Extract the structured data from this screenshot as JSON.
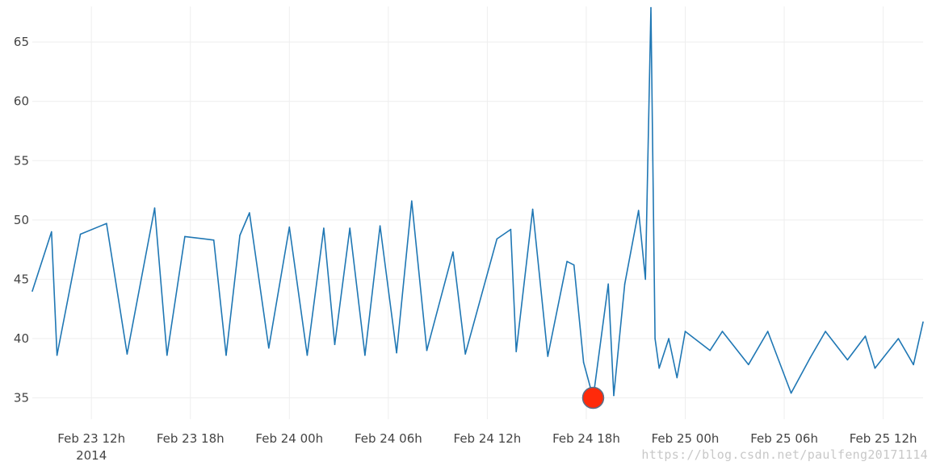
{
  "chart_data": {
    "type": "line",
    "title": "",
    "xlabel": "",
    "ylabel": "",
    "x_start": "2014-02-23 08:25",
    "x_end": "2014-02-25 14:25",
    "xlim": [
      "2014-02-23 08:25",
      "2014-02-25 14:25"
    ],
    "ylim": [
      33.2,
      68
    ],
    "grid": true,
    "legend": "none",
    "line_color": "#1f77b4",
    "marker_color": "#ff2a0a",
    "marker_edge_color": "#5a6e88",
    "y_ticks": [
      35,
      40,
      45,
      50,
      55,
      60,
      65
    ],
    "x_ticks": [
      {
        "t": "2014-02-23 12:00",
        "label": "Feb 23 12h",
        "sub": "2014"
      },
      {
        "t": "2014-02-23 18:00",
        "label": "Feb 23 18h",
        "sub": ""
      },
      {
        "t": "2014-02-24 00:00",
        "label": "Feb 24 00h",
        "sub": ""
      },
      {
        "t": "2014-02-24 06:00",
        "label": "Feb 24 06h",
        "sub": ""
      },
      {
        "t": "2014-02-24 12:00",
        "label": "Feb 24 12h",
        "sub": ""
      },
      {
        "t": "2014-02-24 18:00",
        "label": "Feb 24 18h",
        "sub": ""
      },
      {
        "t": "2014-02-25 00:00",
        "label": "Feb 25 00h",
        "sub": ""
      },
      {
        "t": "2014-02-25 06:00",
        "label": "Feb 25 06h",
        "sub": ""
      },
      {
        "t": "2014-02-25 12:00",
        "label": "Feb 25 12h",
        "sub": ""
      }
    ],
    "anomaly": {
      "x": "2014-02-24 18:25",
      "y": 35.0
    },
    "series": [
      {
        "x": [
          "2014-02-23 08:25",
          "2014-02-23 09:35",
          "2014-02-23 09:55",
          "2014-02-23 11:20",
          "2014-02-23 12:55",
          "2014-02-23 14:10",
          "2014-02-23 15:50",
          "2014-02-23 16:35",
          "2014-02-23 17:40",
          "2014-02-23 19:25",
          "2014-02-23 20:10",
          "2014-02-23 21:00",
          "2014-02-23 21:35",
          "2014-02-23 22:45",
          "2014-02-24 00:00",
          "2014-02-24 01:05",
          "2014-02-24 02:05",
          "2014-02-24 02:45",
          "2014-02-24 03:40",
          "2014-02-24 04:35",
          "2014-02-24 05:30",
          "2014-02-24 06:30",
          "2014-02-24 07:25",
          "2014-02-24 08:20",
          "2014-02-24 09:55",
          "2014-02-24 10:40",
          "2014-02-24 12:35",
          "2014-02-24 13:25",
          "2014-02-24 13:45",
          "2014-02-24 14:45",
          "2014-02-24 15:40",
          "2014-02-24 16:50",
          "2014-02-24 17:15",
          "2014-02-24 17:50",
          "2014-02-24 18:25",
          "2014-02-24 19:20",
          "2014-02-24 19:40",
          "2014-02-24 20:20",
          "2014-02-24 21:10",
          "2014-02-24 21:35",
          "2014-02-24 21:55",
          "2014-02-24 22:10",
          "2014-02-24 22:25",
          "2014-02-24 23:00",
          "2014-02-24 23:30",
          "2014-02-25 00:00",
          "2014-02-25 01:30",
          "2014-02-25 02:15",
          "2014-02-25 03:50",
          "2014-02-25 05:00",
          "2014-02-25 06:25",
          "2014-02-25 07:35",
          "2014-02-25 08:30",
          "2014-02-25 09:50",
          "2014-02-25 10:55",
          "2014-02-25 11:30",
          "2014-02-25 12:55",
          "2014-02-25 13:50",
          "2014-02-25 14:25"
        ],
        "y": [
          44.0,
          49.0,
          38.6,
          48.8,
          49.7,
          38.7,
          51.0,
          38.6,
          48.6,
          48.3,
          38.6,
          48.7,
          50.6,
          39.2,
          49.4,
          38.6,
          49.3,
          39.5,
          49.3,
          38.6,
          49.5,
          38.8,
          51.6,
          39.0,
          47.3,
          38.7,
          48.4,
          49.2,
          38.9,
          50.9,
          38.5,
          46.5,
          46.2,
          38.0,
          35.0,
          44.6,
          35.2,
          44.6,
          50.8,
          45.0,
          67.9,
          40.0,
          37.5,
          40.0,
          36.7,
          40.6,
          39.0,
          40.6,
          37.8,
          40.6,
          35.4,
          38.4,
          40.6,
          38.2,
          40.2,
          37.5,
          40.0,
          37.8,
          41.4
        ]
      }
    ]
  },
  "watermark": "https://blog.csdn.net/paulfeng20171114"
}
